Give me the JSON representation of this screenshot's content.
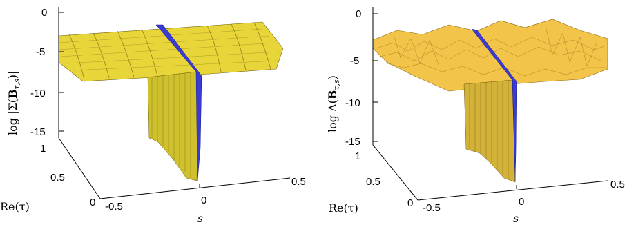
{
  "chart_data": [
    {
      "type": "surface",
      "title": "",
      "xlabel": "s",
      "ylabel": "Re(τ)",
      "zlabel": "log |Σ(B_{τ,s})|",
      "zlabel_parts": [
        "log |Σ(",
        "B",
        "τ,s",
        ")|"
      ],
      "x_ticks": [
        "-0.5",
        "0",
        "0.5"
      ],
      "y_ticks": [
        "0",
        "0.5",
        "1"
      ],
      "z_ticks": [
        "0",
        "-5",
        "-10",
        "-15"
      ],
      "xlim": [
        -0.5,
        0.5
      ],
      "ylim": [
        0,
        1
      ],
      "zlim": [
        -15,
        0
      ],
      "colors": {
        "surface": "#e8d53a",
        "dark": "#8c7f14",
        "stripe": "#3a3ad4"
      },
      "description_values": {
        "plateau_level": -3,
        "trough_level": -15,
        "trough_s": 0
      }
    },
    {
      "type": "surface",
      "title": "",
      "xlabel": "s",
      "ylabel": "Re(τ)",
      "zlabel": "log Δ(B_{τ,s})",
      "zlabel_parts": [
        "log Δ(",
        "B",
        "τ,s",
        ")"
      ],
      "x_ticks": [
        "-0.5",
        "0",
        "0.5"
      ],
      "y_ticks": [
        "0",
        "0.5",
        "1"
      ],
      "z_ticks": [
        "0",
        "-5",
        "-10",
        "-15"
      ],
      "xlim": [
        -0.5,
        0.5
      ],
      "ylim": [
        0,
        1
      ],
      "zlim": [
        -15,
        0
      ],
      "colors": {
        "surface": "#f2c44a",
        "dark": "#a07818",
        "stripe": "#3a3ad4"
      },
      "description_values": {
        "plateau_level": -4,
        "trough_level": -15,
        "trough_s": 0
      }
    }
  ]
}
